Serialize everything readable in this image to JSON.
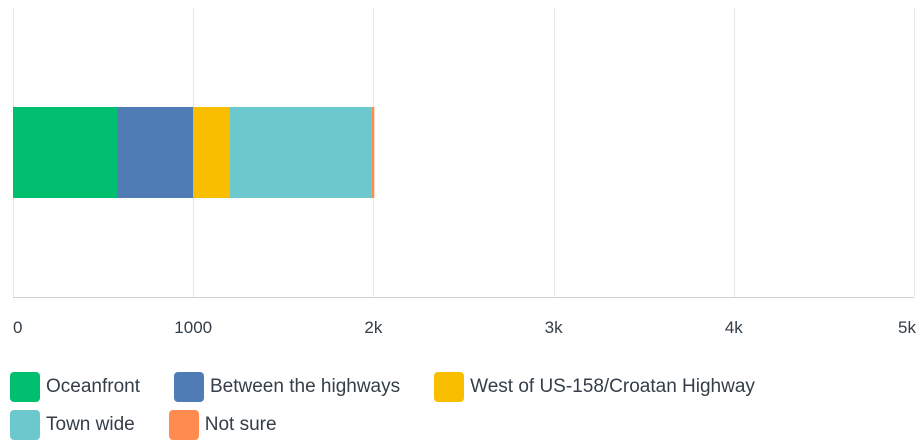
{
  "chart_data": {
    "type": "bar",
    "orientation": "horizontal",
    "stacked": true,
    "title": "",
    "xlabel": "",
    "ylabel": "",
    "xlim": [
      0,
      5000
    ],
    "grid": true,
    "legend_position": "bottom",
    "x_ticks": [
      {
        "value": 0,
        "label": "0"
      },
      {
        "value": 1000,
        "label": "1000"
      },
      {
        "value": 2000,
        "label": "2k"
      },
      {
        "value": 3000,
        "label": "3k"
      },
      {
        "value": 4000,
        "label": "4k"
      },
      {
        "value": 5000,
        "label": "5k"
      }
    ],
    "categories": [
      ""
    ],
    "series": [
      {
        "name": "Oceanfront",
        "color": "#00bf6f",
        "values": [
          580
        ]
      },
      {
        "name": "Between the highways",
        "color": "#507cb6",
        "values": [
          420
        ]
      },
      {
        "name": "West of US-158/Croatan Highway",
        "color": "#f9be00",
        "values": [
          200
        ]
      },
      {
        "name": "Town wide",
        "color": "#6bc8cd",
        "values": [
          790
        ]
      },
      {
        "name": "Not sure",
        "color": "#ff8b4f",
        "values": [
          15
        ]
      }
    ]
  },
  "colors": {
    "grid": "#e6e6e6",
    "axis": "#d0d2d3",
    "text": "#333e48"
  }
}
